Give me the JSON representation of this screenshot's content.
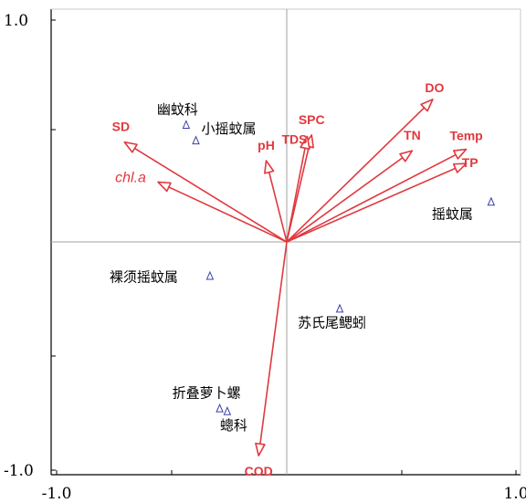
{
  "chart_data": {
    "type": "scatter",
    "title": "",
    "xlabel": "",
    "ylabel": "",
    "xlim": [
      -1.0,
      1.0
    ],
    "ylim": [
      -1.0,
      1.0
    ],
    "xticks": [
      "-1.0",
      "1.0"
    ],
    "yticks": [
      "1.0",
      "-1.0"
    ],
    "grid": false,
    "colors": {
      "vector": "#e0393e",
      "species_marker": "#3b3fa6",
      "axis": "#000000",
      "zero_line": "#a0a0a0"
    },
    "environment_vectors": [
      {
        "name": "SPC",
        "x": 0.23,
        "y": 0.75,
        "italic": false
      },
      {
        "name": "TDS",
        "x": 0.19,
        "y": 0.74,
        "italic": false
      },
      {
        "name": "DO",
        "x": 1.35,
        "y": 1.0,
        "italic": false
      },
      {
        "name": "SD",
        "x": -1.5,
        "y": 0.7,
        "italic": false
      },
      {
        "name": "pH",
        "x": -0.19,
        "y": 0.57,
        "italic": false
      },
      {
        "name": "TN",
        "x": 1.16,
        "y": 0.64,
        "italic": false
      },
      {
        "name": "Temp",
        "x": 1.66,
        "y": 0.65,
        "italic": false
      },
      {
        "name": "TP",
        "x": 1.66,
        "y": 0.55,
        "italic": false
      },
      {
        "name": "chl.a",
        "x": -1.19,
        "y": 0.42,
        "italic": true
      },
      {
        "name": "COD",
        "x": -0.26,
        "y": -1.5,
        "italic": false
      }
    ],
    "species": [
      {
        "name": "幽蚊科",
        "x": -0.93,
        "y": 0.82
      },
      {
        "name": "小摇蚊属",
        "x": -0.84,
        "y": 0.71
      },
      {
        "name": "摇蚊属",
        "x": 1.89,
        "y": 0.28
      },
      {
        "name": "裸须摇蚊属",
        "x": -0.71,
        "y": -0.24
      },
      {
        "name": "苏氏尾鳃蚓",
        "x": 0.49,
        "y": -0.47
      },
      {
        "name": "折叠萝卜螺",
        "x": -0.62,
        "y": -1.17
      },
      {
        "name": "蟌科",
        "x": -0.55,
        "y": -1.19
      }
    ]
  }
}
